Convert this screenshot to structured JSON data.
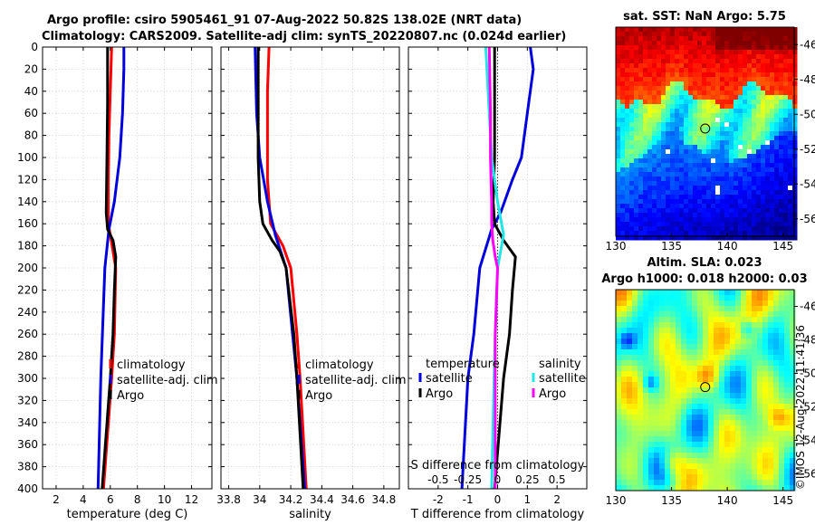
{
  "header": {
    "title_line1": "Argo profile: csiro 5905461_91 07-Aug-2022 50.82S 138.02E (NRT data)",
    "title_line2": "Climatology: CARS2009. Satellite-adj clim: synTS_20220807.nc (0.024d earlier)"
  },
  "sst_panel": {
    "title": "sat. SST: NaN Argo: 5.75"
  },
  "sla_panel": {
    "title_line1": "Altim. SLA: 0.023",
    "title_line2": "Argo h1000: 0.018 h2000: 0.03"
  },
  "credit": "©IMOS 12-Aug-2022 11:41:36",
  "colors": {
    "climatology": "#ff0000",
    "satellite": "#0000dd",
    "argo": "#000000",
    "sal_sat": "#22e5e5",
    "sal_argo": "#ff00ff"
  },
  "legends": {
    "temp": [
      "climatology",
      "satellite-adj. clim",
      "Argo"
    ],
    "sal": [
      "climatology",
      "satellite-adj. clim",
      "Argo"
    ],
    "diff": {
      "t_header": "temperature",
      "s_header": "salinity",
      "t_items": [
        "satellite",
        "Argo"
      ],
      "s_items": [
        "satellite",
        "Argo"
      ]
    }
  },
  "chart_data": [
    {
      "type": "line",
      "title": "",
      "xlabel": "temperature (deg C)",
      "ylabel": "",
      "xlim": [
        1,
        13.5
      ],
      "ylim": [
        400,
        0
      ],
      "xticks": [
        2,
        4,
        6,
        8,
        10,
        12
      ],
      "yticks": [
        0,
        20,
        40,
        60,
        80,
        100,
        120,
        140,
        160,
        180,
        200,
        220,
        240,
        260,
        280,
        300,
        320,
        340,
        360,
        380,
        400
      ],
      "grid": true,
      "legend": "lower-right",
      "series": [
        {
          "name": "climatology",
          "color": "#ff0000",
          "depth": [
            0,
            40,
            80,
            120,
            160,
            170,
            200,
            260,
            300,
            400
          ],
          "values": [
            6.1,
            6.0,
            5.9,
            5.85,
            5.85,
            6.0,
            6.4,
            6.3,
            6.1,
            5.5
          ]
        },
        {
          "name": "satellite-adj. clim",
          "color": "#0000dd",
          "depth": [
            0,
            20,
            60,
            100,
            140,
            165,
            200,
            300,
            400
          ],
          "values": [
            7.0,
            7.0,
            6.9,
            6.7,
            6.3,
            5.9,
            5.6,
            5.3,
            5.1
          ]
        },
        {
          "name": "Argo",
          "color": "#000000",
          "depth": [
            0,
            50,
            100,
            150,
            165,
            175,
            190,
            220,
            260,
            300,
            400
          ],
          "values": [
            5.8,
            5.8,
            5.75,
            5.7,
            5.8,
            6.2,
            6.4,
            6.3,
            6.2,
            6.0,
            5.4
          ]
        }
      ]
    },
    {
      "type": "line",
      "title": "",
      "xlabel": "salinity",
      "ylabel": "",
      "xlim": [
        33.75,
        34.9
      ],
      "ylim": [
        400,
        0
      ],
      "xticks": [
        33.8,
        34,
        34.2,
        34.4,
        34.6,
        34.8
      ],
      "xticklabels": [
        "33.8",
        "34",
        "34.2",
        "34.4",
        "34.6",
        "34.8"
      ],
      "yticks": [
        0,
        20,
        40,
        60,
        80,
        100,
        120,
        140,
        160,
        180,
        200,
        220,
        240,
        260,
        280,
        300,
        320,
        340,
        360,
        380,
        400
      ],
      "grid": true,
      "legend": "lower-right",
      "series": [
        {
          "name": "climatology",
          "color": "#ff0000",
          "depth": [
            0,
            40,
            80,
            120,
            160,
            180,
            200,
            260,
            300,
            400
          ],
          "values": [
            34.06,
            34.05,
            34.05,
            34.05,
            34.07,
            34.15,
            34.2,
            34.24,
            34.26,
            34.3
          ]
        },
        {
          "name": "satellite-adj. clim",
          "color": "#0000dd",
          "depth": [
            0,
            60,
            100,
            140,
            170,
            200,
            300,
            400
          ],
          "values": [
            33.97,
            33.98,
            34.0,
            34.05,
            34.1,
            34.17,
            34.24,
            34.29
          ]
        },
        {
          "name": "Argo",
          "color": "#000000",
          "depth": [
            0,
            60,
            100,
            140,
            160,
            175,
            185,
            200,
            260,
            300,
            400
          ],
          "values": [
            33.99,
            33.99,
            33.99,
            34.0,
            34.02,
            34.08,
            34.13,
            34.17,
            34.22,
            34.24,
            34.28
          ]
        }
      ]
    },
    {
      "type": "line",
      "title": "",
      "xlabel": "T difference from climatology",
      "top_label": "S difference from climatology",
      "ylabel": "",
      "xlim": [
        -3,
        3
      ],
      "ylim": [
        400,
        0
      ],
      "xticks": [
        -2,
        -1,
        0,
        1,
        2
      ],
      "top_xticks": [
        -0.5,
        -0.25,
        0,
        0.25,
        0.5
      ],
      "top_xticklabels": [
        "-0.5",
        "-0.25",
        "0",
        "0.25",
        "0.5"
      ],
      "s_scale": 0.25,
      "yticks": [
        0,
        20,
        40,
        60,
        80,
        100,
        120,
        140,
        160,
        180,
        200,
        220,
        240,
        260,
        280,
        300,
        320,
        340,
        360,
        380,
        400
      ],
      "grid": true,
      "legend": "lower-center",
      "series": [
        {
          "name": "temperature satellite",
          "color": "#0000dd",
          "depth": [
            0,
            20,
            60,
            100,
            120,
            150,
            165,
            200,
            260,
            300,
            400
          ],
          "values": [
            1.1,
            1.2,
            1.0,
            0.8,
            0.5,
            0.1,
            -0.2,
            -0.6,
            -0.8,
            -1.0,
            -1.2
          ]
        },
        {
          "name": "temperature Argo",
          "color": "#000000",
          "depth": [
            0,
            60,
            100,
            140,
            160,
            175,
            190,
            220,
            260,
            300,
            400
          ],
          "values": [
            -0.1,
            -0.1,
            -0.1,
            -0.15,
            -0.1,
            0.2,
            0.6,
            0.5,
            0.4,
            0.2,
            -0.1
          ]
        },
        {
          "name": "salinity satellite",
          "color": "#22e5e5",
          "depth": [
            0,
            60,
            100,
            140,
            170,
            200,
            260,
            300,
            400
          ],
          "values": [
            -0.1,
            -0.07,
            -0.05,
            0.0,
            0.05,
            0.0,
            -0.02,
            -0.03,
            -0.05
          ]
        },
        {
          "name": "salinity Argo",
          "color": "#ff00ff",
          "depth": [
            0,
            60,
            100,
            140,
            160,
            175,
            190,
            200,
            260,
            300,
            400
          ],
          "values": [
            -0.07,
            -0.06,
            -0.06,
            -0.05,
            -0.05,
            -0.04,
            -0.02,
            0.0,
            -0.02,
            -0.02,
            -0.02
          ]
        }
      ]
    },
    {
      "type": "heatmap",
      "title": "sat. SST: NaN Argo: 5.75",
      "xlim": [
        130,
        146
      ],
      "ylim": [
        -57,
        -45
      ],
      "xticks": [
        130,
        135,
        140,
        145
      ],
      "yticks": [
        -46,
        -48,
        -50,
        -52,
        -54,
        -56
      ],
      "yticklabels": [
        "-46",
        "-48",
        "-50",
        "-52",
        "-54",
        "-56"
      ],
      "marker": {
        "lon": 138.02,
        "lat": -50.82
      }
    },
    {
      "type": "heatmap",
      "title": "Altim. SLA: 0.023",
      "subtitle": "Argo h1000: 0.018 h2000: 0.03",
      "xlim": [
        130,
        146
      ],
      "ylim": [
        -57,
        -45
      ],
      "xticks": [
        130,
        135,
        140,
        145
      ],
      "yticks": [
        -46,
        -48,
        -50,
        -52,
        -54,
        -56
      ],
      "yticklabels": [
        "-46",
        "-48",
        "-50",
        "-52",
        "-54",
        "-56"
      ],
      "marker": {
        "lon": 138.02,
        "lat": -50.82
      }
    }
  ]
}
